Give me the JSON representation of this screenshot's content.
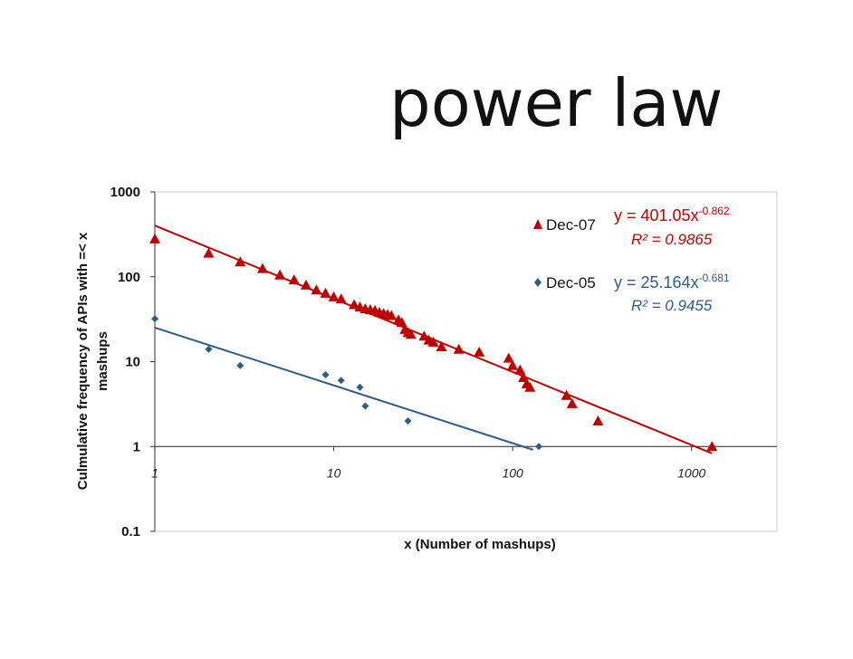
{
  "slide": {
    "title": "power law"
  },
  "chart_data": {
    "type": "scatter",
    "xlabel": "x (Number of mashups)",
    "ylabel_line1": "Culmulative frequency of APIs with =< x",
    "ylabel_line2": "mashups",
    "xscale": "log",
    "yscale": "log",
    "xlim": [
      1,
      3000
    ],
    "ylim": [
      0.1,
      1000
    ],
    "x_ticks": [
      "1",
      "10",
      "100",
      "1000"
    ],
    "y_ticks": [
      "1000",
      "100",
      "10",
      "1",
      "0.1"
    ],
    "grid": false,
    "legend_position": "top-right",
    "series": [
      {
        "name": "Dec-07",
        "marker": "triangle",
        "color": "#c00000",
        "trendline": {
          "a": 401.05,
          "b": -0.862,
          "x_range": [
            1,
            1300
          ]
        },
        "equation": {
          "prefix": "y = 401.05x",
          "exponent": "-0.862",
          "r2_label": "R² = 0.9865"
        },
        "points": [
          [
            1,
            280
          ],
          [
            2,
            190
          ],
          [
            3,
            150
          ],
          [
            4,
            125
          ],
          [
            5,
            105
          ],
          [
            6,
            92
          ],
          [
            7,
            80
          ],
          [
            8,
            70
          ],
          [
            9,
            64
          ],
          [
            10,
            58
          ],
          [
            11,
            55
          ],
          [
            13,
            47
          ],
          [
            14,
            44
          ],
          [
            15,
            42
          ],
          [
            16,
            41
          ],
          [
            17,
            40
          ],
          [
            18,
            38
          ],
          [
            19,
            37
          ],
          [
            20,
            36
          ],
          [
            21,
            35
          ],
          [
            23,
            31
          ],
          [
            24,
            29
          ],
          [
            25,
            24
          ],
          [
            26,
            22
          ],
          [
            27,
            21
          ],
          [
            32,
            20
          ],
          [
            34,
            18
          ],
          [
            36,
            17
          ],
          [
            40,
            15
          ],
          [
            50,
            14
          ],
          [
            65,
            13
          ],
          [
            95,
            11
          ],
          [
            100,
            9
          ],
          [
            110,
            8
          ],
          [
            115,
            6.5
          ],
          [
            120,
            5.5
          ],
          [
            125,
            5
          ],
          [
            200,
            4
          ],
          [
            215,
            3.2
          ],
          [
            300,
            2
          ],
          [
            1300,
            1
          ]
        ]
      },
      {
        "name": "Dec-05",
        "marker": "diamond",
        "color": "#2e5c8a",
        "trendline": {
          "a": 25.164,
          "b": -0.681,
          "x_range": [
            1,
            130
          ]
        },
        "equation": {
          "prefix": "y = 25.164x",
          "exponent": "-0.681",
          "r2_label": "R² = 0.9455"
        },
        "points": [
          [
            1,
            32
          ],
          [
            2,
            14
          ],
          [
            3,
            9
          ],
          [
            9,
            7
          ],
          [
            11,
            6
          ],
          [
            14,
            5
          ],
          [
            15,
            3
          ],
          [
            26,
            2
          ],
          [
            140,
            1
          ]
        ]
      }
    ]
  }
}
